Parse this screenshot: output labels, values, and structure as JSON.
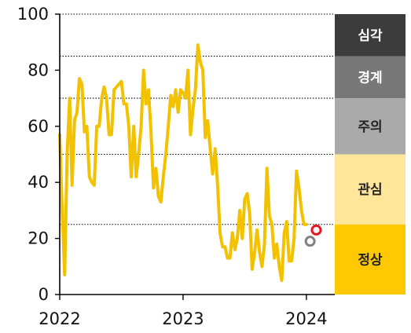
{
  "chart_data": {
    "type": "line",
    "title": "",
    "xlabel": "",
    "ylabel": "",
    "ylim": [
      0,
      100
    ],
    "xlim": [
      2022.0,
      2024.23
    ],
    "y_ticks": [
      "0",
      "20",
      "40",
      "60",
      "80",
      "100"
    ],
    "y_tick_values": [
      0,
      20,
      40,
      60,
      80,
      100
    ],
    "x_ticks": [
      "2022",
      "2023",
      "2024"
    ],
    "x_tick_values": [
      2022,
      2023,
      2024
    ],
    "threshold_lines": [
      25,
      50,
      70,
      85,
      100
    ],
    "grid": "dotted horizontal at thresholds",
    "legend": "right-side color bands",
    "bands": [
      {
        "label": "심각",
        "from": 85,
        "to": 100,
        "color": "#3c3c3c",
        "text_color": "#ffffff"
      },
      {
        "label": "경계",
        "from": 70,
        "to": 85,
        "color": "#787878",
        "text_color": "#ffffff"
      },
      {
        "label": "주의",
        "from": 50,
        "to": 70,
        "color": "#aaaaaa",
        "text_color": "#222222"
      },
      {
        "label": "관심",
        "from": 25,
        "to": 50,
        "color": "#ffe699",
        "text_color": "#222222"
      },
      {
        "label": "정상",
        "from": 0,
        "to": 25,
        "color": "#ffc800",
        "text_color": "#222222"
      }
    ],
    "series": [
      {
        "color": "#f2c200",
        "points": [
          [
            2022.0,
            57
          ],
          [
            2022.02,
            30
          ],
          [
            2022.04,
            7
          ],
          [
            2022.06,
            50
          ],
          [
            2022.08,
            70
          ],
          [
            2022.1,
            39
          ],
          [
            2022.12,
            62
          ],
          [
            2022.14,
            65
          ],
          [
            2022.16,
            77
          ],
          [
            2022.18,
            75
          ],
          [
            2022.2,
            58
          ],
          [
            2022.22,
            60
          ],
          [
            2022.24,
            42
          ],
          [
            2022.26,
            40
          ],
          [
            2022.28,
            39
          ],
          [
            2022.3,
            60
          ],
          [
            2022.32,
            60
          ],
          [
            2022.34,
            70
          ],
          [
            2022.36,
            74
          ],
          [
            2022.38,
            70
          ],
          [
            2022.4,
            57
          ],
          [
            2022.42,
            57
          ],
          [
            2022.44,
            73
          ],
          [
            2022.46,
            74
          ],
          [
            2022.48,
            75
          ],
          [
            2022.5,
            76
          ],
          [
            2022.52,
            68
          ],
          [
            2022.54,
            68
          ],
          [
            2022.56,
            60
          ],
          [
            2022.58,
            42
          ],
          [
            2022.6,
            60
          ],
          [
            2022.62,
            42
          ],
          [
            2022.64,
            50
          ],
          [
            2022.66,
            60
          ],
          [
            2022.68,
            80
          ],
          [
            2022.7,
            68
          ],
          [
            2022.72,
            73
          ],
          [
            2022.74,
            58
          ],
          [
            2022.76,
            38
          ],
          [
            2022.78,
            45
          ],
          [
            2022.8,
            35
          ],
          [
            2022.82,
            33
          ],
          [
            2022.84,
            42
          ],
          [
            2022.86,
            50
          ],
          [
            2022.88,
            60
          ],
          [
            2022.9,
            71
          ],
          [
            2022.92,
            67
          ],
          [
            2022.94,
            73
          ],
          [
            2022.96,
            65
          ],
          [
            2022.98,
            73
          ],
          [
            2023.0,
            72
          ],
          [
            2023.02,
            70
          ],
          [
            2023.04,
            80
          ],
          [
            2023.06,
            57
          ],
          [
            2023.08,
            66
          ],
          [
            2023.1,
            73
          ],
          [
            2023.12,
            89
          ],
          [
            2023.14,
            83
          ],
          [
            2023.16,
            80
          ],
          [
            2023.18,
            56
          ],
          [
            2023.2,
            62
          ],
          [
            2023.22,
            52
          ],
          [
            2023.24,
            43
          ],
          [
            2023.26,
            52
          ],
          [
            2023.28,
            39
          ],
          [
            2023.3,
            22
          ],
          [
            2023.32,
            17
          ],
          [
            2023.34,
            17
          ],
          [
            2023.36,
            13
          ],
          [
            2023.38,
            13
          ],
          [
            2023.4,
            22
          ],
          [
            2023.42,
            16
          ],
          [
            2023.44,
            20
          ],
          [
            2023.46,
            30
          ],
          [
            2023.48,
            20
          ],
          [
            2023.5,
            34
          ],
          [
            2023.52,
            36
          ],
          [
            2023.54,
            29
          ],
          [
            2023.56,
            9
          ],
          [
            2023.58,
            15
          ],
          [
            2023.6,
            23
          ],
          [
            2023.62,
            15
          ],
          [
            2023.64,
            10
          ],
          [
            2023.66,
            18
          ],
          [
            2023.68,
            45
          ],
          [
            2023.7,
            28
          ],
          [
            2023.72,
            25
          ],
          [
            2023.74,
            13
          ],
          [
            2023.76,
            18
          ],
          [
            2023.78,
            10
          ],
          [
            2023.8,
            5
          ],
          [
            2023.82,
            22
          ],
          [
            2023.84,
            26
          ],
          [
            2023.86,
            12
          ],
          [
            2023.88,
            12
          ],
          [
            2023.9,
            20
          ],
          [
            2023.92,
            44
          ],
          [
            2023.94,
            38
          ],
          [
            2023.96,
            30
          ],
          [
            2023.98,
            25
          ],
          [
            2024.0,
            25
          ]
        ]
      }
    ],
    "markers": [
      {
        "x": 2024.08,
        "y": 23,
        "stroke": "#e8141e",
        "fill": "#ffffff"
      },
      {
        "x": 2024.03,
        "y": 19,
        "stroke": "#808080",
        "fill": "#ffffff"
      }
    ]
  }
}
